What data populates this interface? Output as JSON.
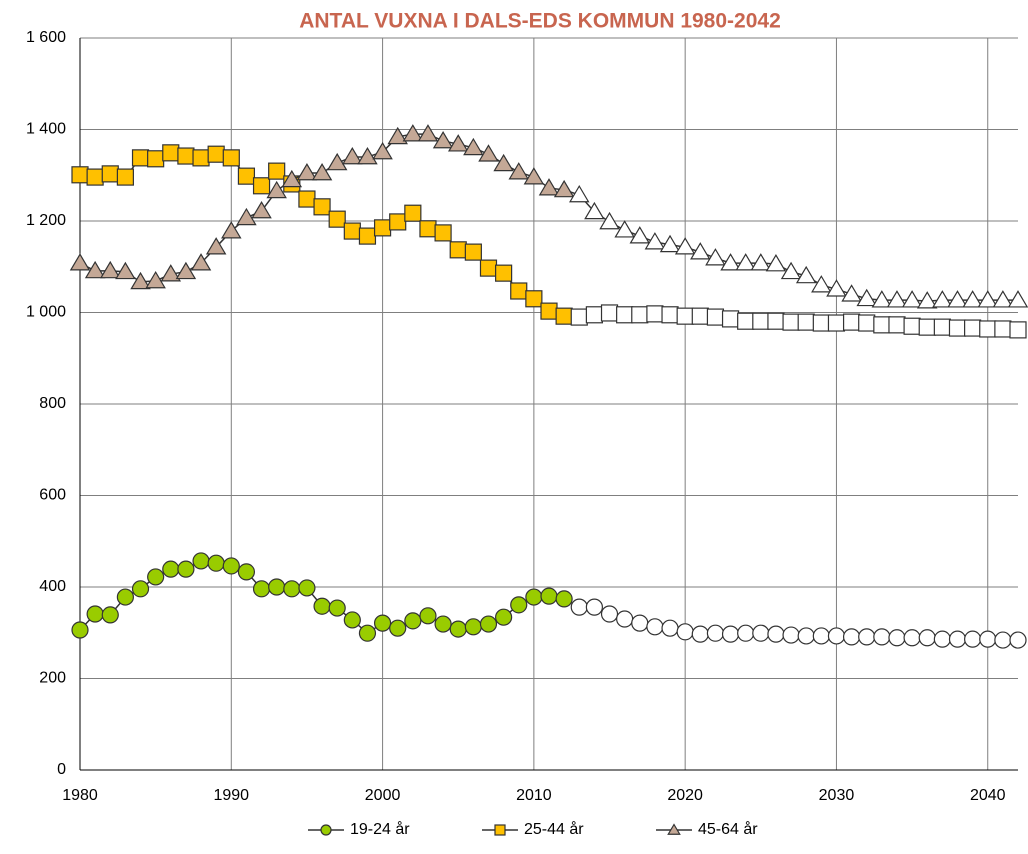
{
  "chart_data": {
    "type": "line",
    "title": "ANTAL VUXNA I DALS-EDS KOMMUN 1980-2042",
    "x": [
      1980,
      1981,
      1982,
      1983,
      1984,
      1985,
      1986,
      1987,
      1988,
      1989,
      1990,
      1991,
      1992,
      1993,
      1994,
      1995,
      1996,
      1997,
      1998,
      1999,
      2000,
      2001,
      2002,
      2003,
      2004,
      2005,
      2006,
      2007,
      2008,
      2009,
      2010,
      2011,
      2012,
      2013,
      2014,
      2015,
      2016,
      2017,
      2018,
      2019,
      2020,
      2021,
      2022,
      2023,
      2024,
      2025,
      2026,
      2027,
      2028,
      2029,
      2030,
      2031,
      2032,
      2033,
      2034,
      2035,
      2036,
      2037,
      2038,
      2039,
      2040,
      2041,
      2042
    ],
    "series": [
      {
        "name": "19-24 år",
        "color": "#99cc00",
        "marker": "circle",
        "values": [
          306,
          341,
          339,
          378,
          396,
          422,
          439,
          439,
          457,
          452,
          446,
          433,
          396,
          400,
          396,
          398,
          358,
          354,
          328,
          299,
          321,
          310,
          326,
          337,
          319,
          308,
          313,
          319,
          334,
          361,
          378,
          380,
          374,
          356,
          356,
          341,
          330,
          321,
          313,
          310,
          302,
          297,
          299,
          297,
          299,
          299,
          297,
          295,
          293,
          293,
          293,
          291,
          291,
          291,
          289,
          289,
          289,
          286,
          286,
          286,
          286,
          284,
          284
        ]
      },
      {
        "name": "25-44 år",
        "color": "#ffc000",
        "marker": "square",
        "values": [
          1301,
          1296,
          1303,
          1296,
          1338,
          1336,
          1349,
          1342,
          1338,
          1346,
          1338,
          1298,
          1277,
          1309,
          1281,
          1248,
          1231,
          1204,
          1178,
          1167,
          1185,
          1198,
          1217,
          1183,
          1174,
          1137,
          1132,
          1097,
          1086,
          1047,
          1030,
          1003,
          992,
          990,
          995,
          999,
          995,
          995,
          997,
          995,
          992,
          992,
          990,
          986,
          981,
          981,
          981,
          979,
          979,
          977,
          977,
          979,
          977,
          973,
          973,
          970,
          968,
          968,
          966,
          966,
          964,
          964,
          962
        ]
      },
      {
        "name": "45-64 år",
        "color": "#c4a896",
        "marker": "triangle",
        "values": [
          1108,
          1091,
          1091,
          1089,
          1067,
          1069,
          1084,
          1089,
          1108,
          1143,
          1178,
          1207,
          1222,
          1266,
          1290,
          1305,
          1305,
          1327,
          1340,
          1340,
          1351,
          1384,
          1390,
          1390,
          1375,
          1368,
          1360,
          1346,
          1325,
          1307,
          1296,
          1272,
          1268,
          1257,
          1220,
          1198,
          1180,
          1167,
          1154,
          1148,
          1143,
          1132,
          1119,
          1108,
          1108,
          1108,
          1106,
          1089,
          1080,
          1060,
          1051,
          1040,
          1030,
          1027,
          1027,
          1027,
          1025,
          1027,
          1027,
          1027,
          1027,
          1027,
          1027
        ]
      }
    ],
    "open_markers_from": 2013,
    "line_color": "#333333",
    "xlim": [
      1980,
      2042
    ],
    "xticks": [
      1980,
      1990,
      2000,
      2010,
      2020,
      2030,
      2040
    ],
    "ylim": [
      0,
      1600
    ],
    "yticks": [
      0,
      200,
      400,
      600,
      800,
      {
        "value": 1000,
        "label": "1 000"
      },
      {
        "value": 1200,
        "label": "1 200"
      },
      {
        "value": 1400,
        "label": "1 400"
      },
      {
        "value": 1600,
        "label": "1 600"
      }
    ],
    "grid": true,
    "legend": "bottom"
  }
}
